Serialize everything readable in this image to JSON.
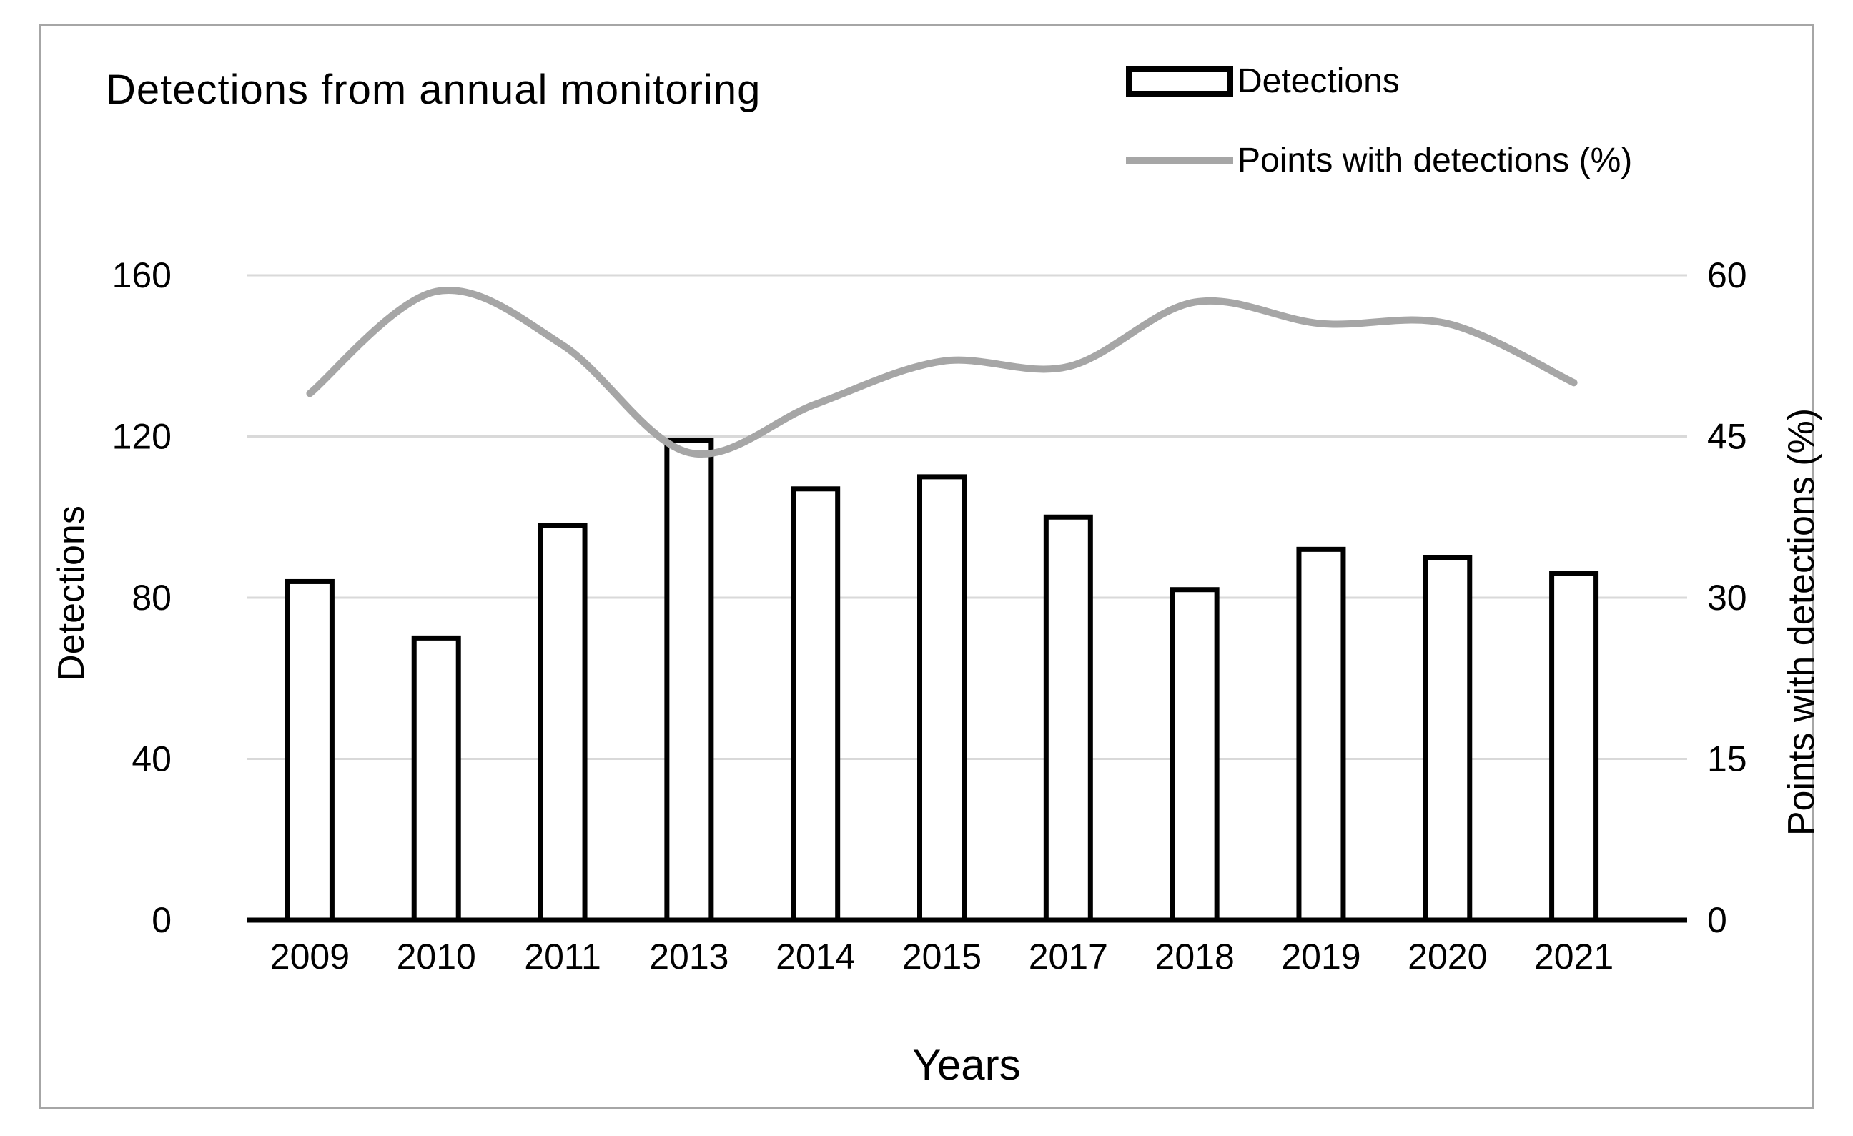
{
  "title": "Detections from annual monitoring",
  "legend": [
    {
      "label": "Detections",
      "swatch": "bar-swatch"
    },
    {
      "label": "Points with detections (%)",
      "swatch": "line-swatch"
    }
  ],
  "axes": {
    "left": {
      "title": "Detections",
      "ticks": [
        160,
        120,
        80,
        40,
        0
      ]
    },
    "right": {
      "title": "Points with detections (%)",
      "ticks": [
        60,
        45,
        30,
        15,
        0
      ]
    },
    "x": {
      "title": "Years"
    }
  },
  "chart_data": {
    "type": "bar+line",
    "title": "Detections from annual monitoring",
    "categories": [
      "2009",
      "2010",
      "2011",
      "2013",
      "2014",
      "2015",
      "2017",
      "2018",
      "2019",
      "2020",
      "2021"
    ],
    "series": [
      {
        "name": "Detections",
        "type": "bar",
        "axis": "left",
        "values": [
          84,
          70,
          98,
          119,
          107,
          110,
          100,
          82,
          92,
          90,
          86
        ]
      },
      {
        "name": "Points with detections (%)",
        "type": "line",
        "axis": "right",
        "smooth": true,
        "values": [
          49,
          58.5,
          53.5,
          43.5,
          48,
          52,
          51.5,
          57.5,
          55.5,
          55.5,
          50
        ]
      }
    ],
    "xlabel": "Years",
    "ylabel_left": "Detections",
    "ylabel_right": "Points with detections (%)",
    "left_ylim": [
      0,
      160
    ],
    "right_ylim": [
      0,
      60
    ],
    "grid": true,
    "legend_position": "top-right"
  },
  "colors": {
    "line": "#a6a6a6",
    "grid": "#d9d9d9",
    "bar_fill": "#ffffff",
    "bar_border": "#000000",
    "baseline": "#000000",
    "frame": "#a6a6a6",
    "text": "#000000"
  }
}
